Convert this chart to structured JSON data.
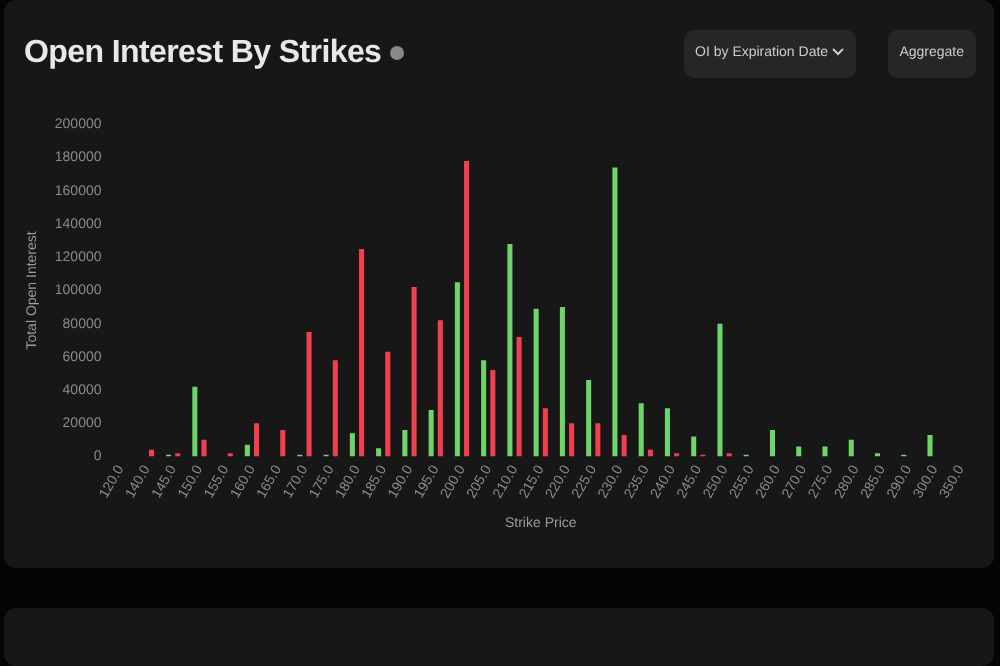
{
  "chart_data": {
    "type": "bar",
    "title": "Open Interest By Strikes",
    "xlabel": "Strike Price",
    "ylabel": "Total Open Interest",
    "categories": [
      "120.0",
      "140.0",
      "145.0",
      "150.0",
      "155.0",
      "160.0",
      "165.0",
      "170.0",
      "175.0",
      "180.0",
      "185.0",
      "190.0",
      "195.0",
      "200.0",
      "205.0",
      "210.0",
      "215.0",
      "220.0",
      "225.0",
      "230.0",
      "235.0",
      "240.0",
      "245.0",
      "250.0",
      "255.0",
      "260.0",
      "270.0",
      "275.0",
      "280.0",
      "285.0",
      "290.0",
      "300.0",
      "350.0"
    ],
    "series": [
      {
        "color": "#6fd46a",
        "values": [
          0,
          0,
          1000,
          42000,
          0,
          7000,
          0,
          1000,
          1000,
          14000,
          5000,
          16000,
          28000,
          105000,
          58000,
          128000,
          89000,
          90000,
          46000,
          174000,
          32000,
          29000,
          12000,
          80000,
          1000,
          16000,
          6000,
          6000,
          10000,
          2000,
          1000,
          13000,
          0
        ]
      },
      {
        "color": "#f0404f",
        "values": [
          0,
          4000,
          2000,
          10000,
          2000,
          20000,
          16000,
          75000,
          58000,
          125000,
          63000,
          102000,
          82000,
          178000,
          52000,
          72000,
          29000,
          20000,
          20000,
          13000,
          4000,
          2000,
          1000,
          2000,
          0,
          0,
          0,
          0,
          0,
          0,
          0,
          0,
          0
        ]
      }
    ],
    "ylim": [
      0,
      200000
    ],
    "yticks": [
      0,
      20000,
      40000,
      60000,
      80000,
      100000,
      120000,
      140000,
      160000,
      180000,
      200000
    ],
    "grid": false,
    "legend": false,
    "annotations": [
      "OI by Expiration Date",
      "Aggregate"
    ]
  }
}
